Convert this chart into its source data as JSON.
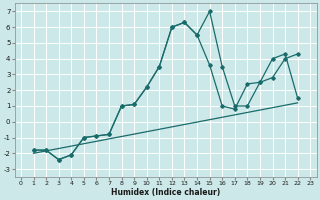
{
  "xlabel": "Humidex (Indice chaleur)",
  "bg_color": "#cde8e8",
  "grid_color": "#ffffff",
  "line_color": "#1a6b6b",
  "xlim": [
    -0.5,
    23.5
  ],
  "ylim": [
    -3.5,
    7.5
  ],
  "xticks": [
    0,
    1,
    2,
    3,
    4,
    5,
    6,
    7,
    8,
    9,
    10,
    11,
    12,
    13,
    14,
    15,
    16,
    17,
    18,
    19,
    20,
    21,
    22,
    23
  ],
  "yticks": [
    -3,
    -2,
    -1,
    0,
    1,
    2,
    3,
    4,
    5,
    6,
    7
  ],
  "line1_x": [
    1,
    2,
    3,
    4,
    5,
    6,
    7,
    8,
    9,
    10,
    11,
    12,
    13,
    14,
    15,
    16,
    17,
    18,
    19,
    20,
    21,
    22
  ],
  "line1_y": [
    -1.8,
    -1.8,
    -2.4,
    -2.1,
    -1.0,
    -0.9,
    -0.8,
    1.0,
    1.1,
    2.2,
    3.5,
    6.0,
    6.3,
    5.5,
    7.0,
    3.5,
    1.0,
    1.0,
    2.5,
    2.8,
    4.0,
    4.3
  ],
  "line2_x": [
    1,
    2,
    3,
    4,
    5,
    6,
    7,
    8,
    9,
    10,
    11,
    12,
    13,
    14,
    15,
    16,
    17,
    18,
    19,
    20,
    21,
    22
  ],
  "line2_y": [
    -1.8,
    -1.8,
    -2.4,
    -2.1,
    -1.0,
    -0.9,
    -0.8,
    1.0,
    1.1,
    2.2,
    3.5,
    6.0,
    6.3,
    5.5,
    3.6,
    1.0,
    0.8,
    2.4,
    2.5,
    4.0,
    4.3,
    1.5
  ],
  "line3_x": [
    1,
    22
  ],
  "line3_y": [
    -2.0,
    1.2
  ]
}
